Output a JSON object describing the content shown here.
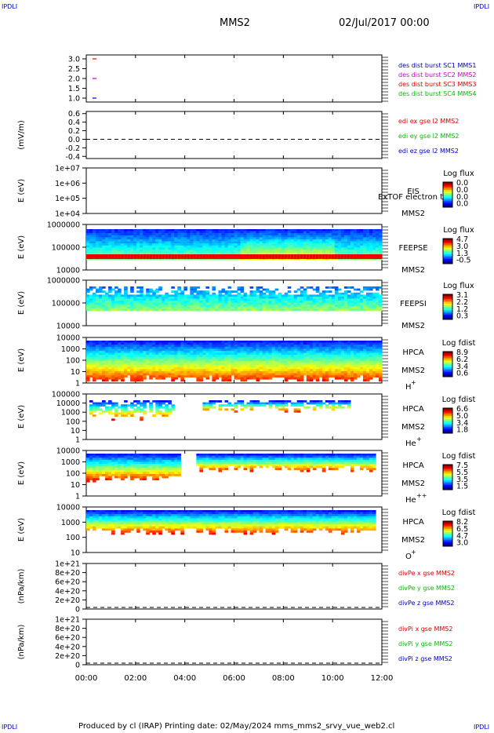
{
  "corner_tags": {
    "top_left": "IPDLI",
    "top_right": "IPDLI",
    "bottom_left": "IPDLI",
    "bottom_right": "IPDLI"
  },
  "header": {
    "mission": "MMS2",
    "date": "02/Jul/2017 00:00"
  },
  "footer": "Produced by cl (IRAP)   Printing date: 02/May/2024   mms_mms2_srvy_vue_web2.cl",
  "colors": {
    "red": "#e00000",
    "magenta": "#cc00cc",
    "green": "#00c000",
    "blue": "#0000c0"
  },
  "chart_data": {
    "type": "multi-panel time series (spectrograms and line plots)",
    "x_ticks": [
      "00:00",
      "02:00",
      "04:00",
      "06:00",
      "08:00",
      "10:00",
      "12:00"
    ],
    "panels": [
      {
        "id": "burst",
        "type": "line",
        "y_ticks": [
          "3.0",
          "2.5",
          "2.0",
          "1.5",
          "1.0"
        ],
        "ylim": [
          0.8,
          3.2
        ],
        "legend": [
          {
            "label": "des dist burst SC1 MMS1",
            "color": "blue"
          },
          {
            "label": "des dist burst SC2 MMS2",
            "color": "magenta"
          },
          {
            "label": "des dist burst SC3 MMS3",
            "color": "red"
          },
          {
            "label": "des dist burst SC4 MMS4",
            "color": "green"
          }
        ]
      },
      {
        "id": "edi",
        "type": "line",
        "ylabel": "(mV/m)",
        "y_ticks": [
          "0.6",
          "0.4",
          "0.2",
          "0.0",
          "-0.2",
          "-0.4"
        ],
        "ylim": [
          -0.45,
          0.65
        ],
        "legend": [
          {
            "label": "edi ex gse l2 MMS2",
            "color": "red"
          },
          {
            "label": "edi ey gse l2 MMS2",
            "color": "green"
          },
          {
            "label": "edi ez gse l2 MMS2",
            "color": "blue"
          }
        ]
      },
      {
        "id": "eis",
        "type": "heatmap",
        "ylabel": "E (eV)",
        "yscale": "log",
        "y_ticks": [
          "1e+07",
          "1e+06",
          "1e+05",
          "1e+04"
        ],
        "labels": [
          "EIS",
          "MMS2"
        ],
        "overlay": "ExTOF electron to",
        "cbar_title": "Log flux",
        "cbar_ticks": [
          "0.0",
          "0.0",
          "0.0",
          "0.0"
        ]
      },
      {
        "id": "feepse",
        "type": "heatmap",
        "ylabel": "E (eV)",
        "yscale": "log",
        "y_ticks": [
          "1000000",
          "100000",
          "10000"
        ],
        "labels": [
          "FEEPSE",
          "MMS2"
        ],
        "cbar_title": "Log flux",
        "cbar_ticks": [
          "4.7",
          "3.0",
          "1.3",
          "-0.5"
        ]
      },
      {
        "id": "feepsi",
        "type": "heatmap",
        "ylabel": "E (eV)",
        "yscale": "log",
        "y_ticks": [
          "1000000",
          "100000",
          "10000"
        ],
        "labels": [
          "FEEPSI",
          "MMS2"
        ],
        "cbar_title": "Log flux",
        "cbar_ticks": [
          "3.1",
          "2.2",
          "1.2",
          "0.3"
        ]
      },
      {
        "id": "hpca_h",
        "type": "heatmap",
        "ylabel": "E (eV)",
        "yscale": "log",
        "y_ticks": [
          "10000",
          "1000",
          "100",
          "10",
          "1"
        ],
        "labels": [
          "HPCA",
          "MMS2"
        ],
        "species": "H",
        "charge": "+",
        "cbar_title": "Log fdist",
        "cbar_ticks": [
          "8.9",
          "6.2",
          "3.4",
          "0.6"
        ]
      },
      {
        "id": "hpca_he",
        "type": "heatmap",
        "ylabel": "E (eV)",
        "yscale": "log",
        "y_ticks": [
          "100000",
          "10000",
          "1000",
          "100",
          "10",
          "1"
        ],
        "labels": [
          "HPCA",
          "MMS2"
        ],
        "species": "He",
        "charge": "+",
        "cbar_title": "Log fdist",
        "cbar_ticks": [
          "6.6",
          "5.0",
          "3.4",
          "1.8"
        ]
      },
      {
        "id": "hpca_hepp",
        "type": "heatmap",
        "ylabel": "E (eV)",
        "yscale": "log",
        "y_ticks": [
          "10000",
          "1000",
          "100",
          "10",
          "1"
        ],
        "labels": [
          "HPCA",
          "MMS2"
        ],
        "species": "He",
        "charge": "++",
        "cbar_title": "Log fdist",
        "cbar_ticks": [
          "7.5",
          "5.5",
          "3.5",
          "1.5"
        ]
      },
      {
        "id": "hpca_o",
        "type": "heatmap",
        "ylabel": "E (eV)",
        "yscale": "log",
        "y_ticks": [
          "10000",
          "1000",
          "100",
          "10"
        ],
        "labels": [
          "HPCA",
          "MMS2"
        ],
        "species": "O",
        "charge": "+",
        "cbar_title": "Log fdist",
        "cbar_ticks": [
          "8.2",
          "6.5",
          "4.7",
          "3.0"
        ]
      },
      {
        "id": "divpe",
        "type": "line",
        "ylabel": "(nPa/km)",
        "y_ticks": [
          "1e+21",
          "8e+20",
          "6e+20",
          "4e+20",
          "2e+20",
          "0"
        ],
        "legend": [
          {
            "label": "divPe x gse MMS2",
            "color": "red"
          },
          {
            "label": "divPe y gse MMS2",
            "color": "green"
          },
          {
            "label": "divPe z gse MMS2",
            "color": "blue"
          }
        ]
      },
      {
        "id": "divpi",
        "type": "line",
        "ylabel": "(nPa/km)",
        "y_ticks": [
          "1e+21",
          "8e+20",
          "6e+20",
          "4e+20",
          "2e+20",
          "0"
        ],
        "legend": [
          {
            "label": "divPi x gse MMS2",
            "color": "red"
          },
          {
            "label": "divPi y gse MMS2",
            "color": "green"
          },
          {
            "label": "divPi z gse MMS2",
            "color": "blue"
          }
        ]
      }
    ]
  }
}
